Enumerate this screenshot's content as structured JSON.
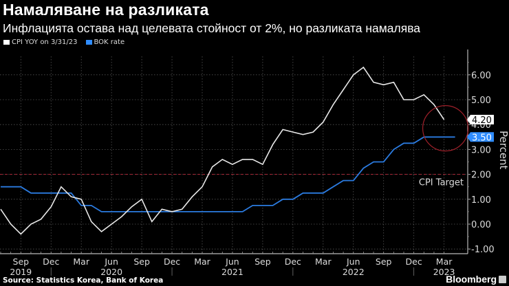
{
  "header": {
    "title": "Намаляване на разликата",
    "subtitle": "Инфлацията остава над целевата стойност от 2%, но разликата намалява"
  },
  "legend": [
    {
      "label": "CPI YOY on 3/31/23",
      "color": "#ffffff"
    },
    {
      "label": "BOK rate",
      "color": "#2f8cff"
    }
  ],
  "footer": {
    "source": "Source: Statistics Korea, Bank of Korea",
    "brand": "Bloomberg"
  },
  "colors": {
    "cpi": "#e8e8e8",
    "bok": "#2b7be0",
    "target": "#b02a3a",
    "grid": "#555555",
    "highlight_circle": "#a0202a"
  },
  "chart_data": {
    "type": "line",
    "title": "Намаляване на разликата",
    "subtitle": "Инфлацията остава над целевата стойност от 2%, но разликата намалява",
    "ylabel": "Percent",
    "xlabel": "",
    "ylim": [
      -1.2,
      7.3
    ],
    "yticks": [
      6.0,
      5.0,
      4.0,
      3.0,
      2.0,
      1.0,
      0.0,
      -1.0
    ],
    "ytick_labels": [
      "6.00",
      "5.00",
      "4.00",
      "3.00",
      "2.00",
      "1.00",
      "0.00",
      "-1.00"
    ],
    "grid": true,
    "legend_position": "top-left",
    "x_tick_labels": [
      {
        "month": "Sep",
        "year": "2019"
      },
      {
        "month": "Dec",
        "year": ""
      },
      {
        "month": "Mar",
        "year": ""
      },
      {
        "month": "Jun",
        "year": "2020"
      },
      {
        "month": "Sep",
        "year": ""
      },
      {
        "month": "Dec",
        "year": ""
      },
      {
        "month": "Mar",
        "year": ""
      },
      {
        "month": "Jun",
        "year": "2021"
      },
      {
        "month": "Sep",
        "year": ""
      },
      {
        "month": "Dec",
        "year": ""
      },
      {
        "month": "Mar",
        "year": ""
      },
      {
        "month": "Jun",
        "year": "2022"
      },
      {
        "month": "Sep",
        "year": ""
      },
      {
        "month": "Dec",
        "year": ""
      },
      {
        "month": "Mar",
        "year": "2023"
      }
    ],
    "x": [
      "2019-07",
      "2019-08",
      "2019-09",
      "2019-10",
      "2019-11",
      "2019-12",
      "2020-01",
      "2020-02",
      "2020-03",
      "2020-04",
      "2020-05",
      "2020-06",
      "2020-07",
      "2020-08",
      "2020-09",
      "2020-10",
      "2020-11",
      "2020-12",
      "2021-01",
      "2021-02",
      "2021-03",
      "2021-04",
      "2021-05",
      "2021-06",
      "2021-07",
      "2021-08",
      "2021-09",
      "2021-10",
      "2021-11",
      "2021-12",
      "2022-01",
      "2022-02",
      "2022-03",
      "2022-04",
      "2022-05",
      "2022-06",
      "2022-07",
      "2022-08",
      "2022-09",
      "2022-10",
      "2022-11",
      "2022-12",
      "2023-01",
      "2023-02",
      "2023-03"
    ],
    "series": [
      {
        "name": "CPI YOY on 3/31/23",
        "values": [
          0.6,
          0.0,
          -0.4,
          0.0,
          0.2,
          0.7,
          1.5,
          1.1,
          1.0,
          0.1,
          -0.3,
          0.0,
          0.3,
          0.7,
          1.0,
          0.1,
          0.6,
          0.5,
          0.6,
          1.1,
          1.5,
          2.3,
          2.6,
          2.4,
          2.6,
          2.6,
          2.4,
          3.2,
          3.8,
          3.7,
          3.6,
          3.7,
          4.1,
          4.8,
          5.4,
          6.0,
          6.3,
          5.7,
          5.6,
          5.7,
          5.0,
          5.0,
          5.2,
          4.8,
          4.2
        ]
      },
      {
        "name": "BOK rate",
        "values": [
          1.5,
          1.5,
          1.5,
          1.25,
          1.25,
          1.25,
          1.25,
          1.25,
          0.75,
          0.75,
          0.5,
          0.5,
          0.5,
          0.5,
          0.5,
          0.5,
          0.5,
          0.5,
          0.5,
          0.5,
          0.5,
          0.5,
          0.5,
          0.5,
          0.5,
          0.75,
          0.75,
          0.75,
          1.0,
          1.0,
          1.25,
          1.25,
          1.25,
          1.5,
          1.75,
          1.75,
          2.25,
          2.5,
          2.5,
          3.0,
          3.25,
          3.25,
          3.5,
          3.5,
          3.5
        ]
      }
    ],
    "annotations": [
      {
        "type": "hline",
        "y": 2.0,
        "label": "CPI Target",
        "style": "dashed"
      },
      {
        "type": "value_label",
        "series": "CPI YOY on 3/31/23",
        "value": "4.20"
      },
      {
        "type": "value_label",
        "series": "BOK rate",
        "value": "3.50"
      },
      {
        "type": "circle",
        "around": "2023-03"
      }
    ],
    "target_label": "CPI Target",
    "last_values": {
      "cpi": "4.20",
      "bok": "3.50"
    }
  }
}
